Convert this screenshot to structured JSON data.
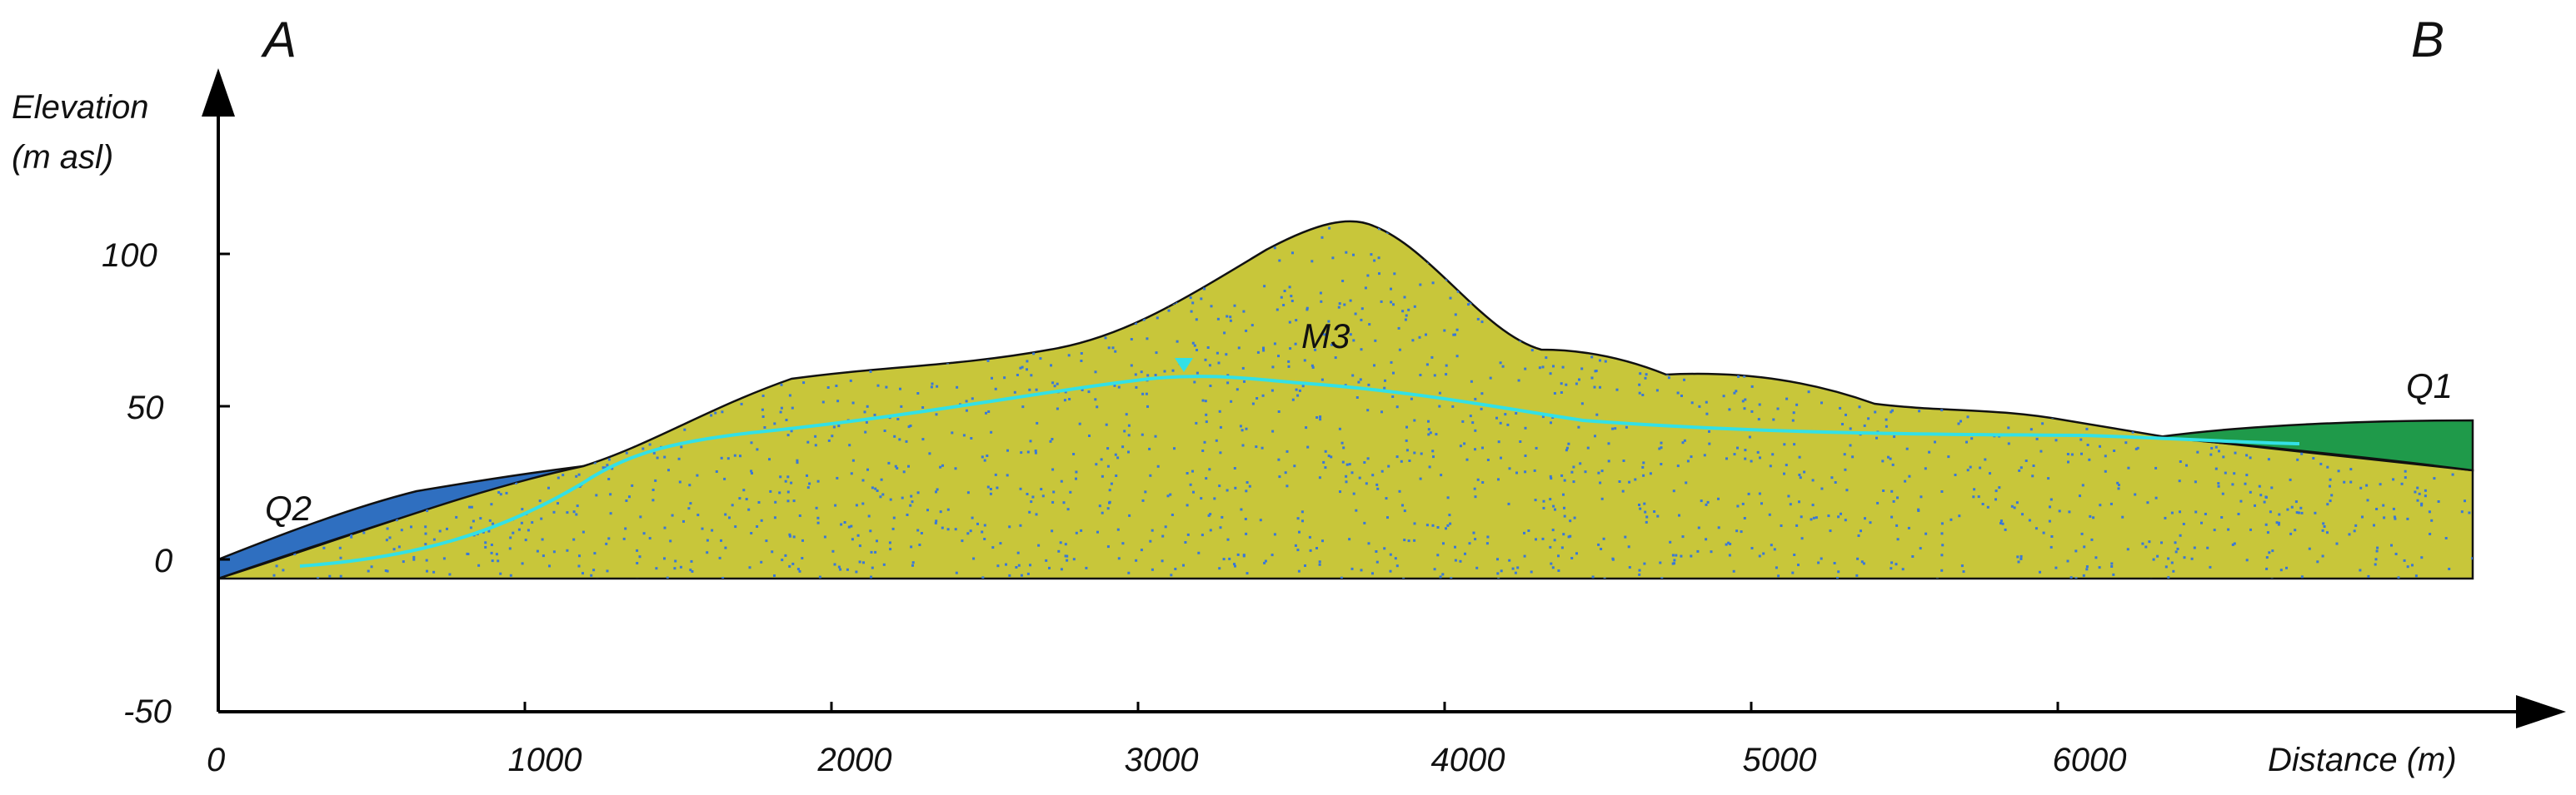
{
  "section": {
    "left_label": "A",
    "right_label": "B"
  },
  "axes": {
    "y_title_line1": "Elevation",
    "y_title_line2": "(m asl)",
    "x_title": "Distance (m)",
    "y_ticks": [
      "100",
      "50",
      "0",
      "-50"
    ],
    "x_ticks": [
      "0",
      "1000",
      "2000",
      "3000",
      "4000",
      "5000",
      "6000"
    ]
  },
  "units": {
    "q2": "Q2",
    "m3": "M3",
    "q1": "Q1"
  },
  "colors": {
    "m3_fill": "#c8c63a",
    "m3_dots": "#3a78d6",
    "q2_fill": "#2f6fc0",
    "q1_fill": "#1f9a4a",
    "water_table": "#33e0e6",
    "axis": "#000000"
  }
}
